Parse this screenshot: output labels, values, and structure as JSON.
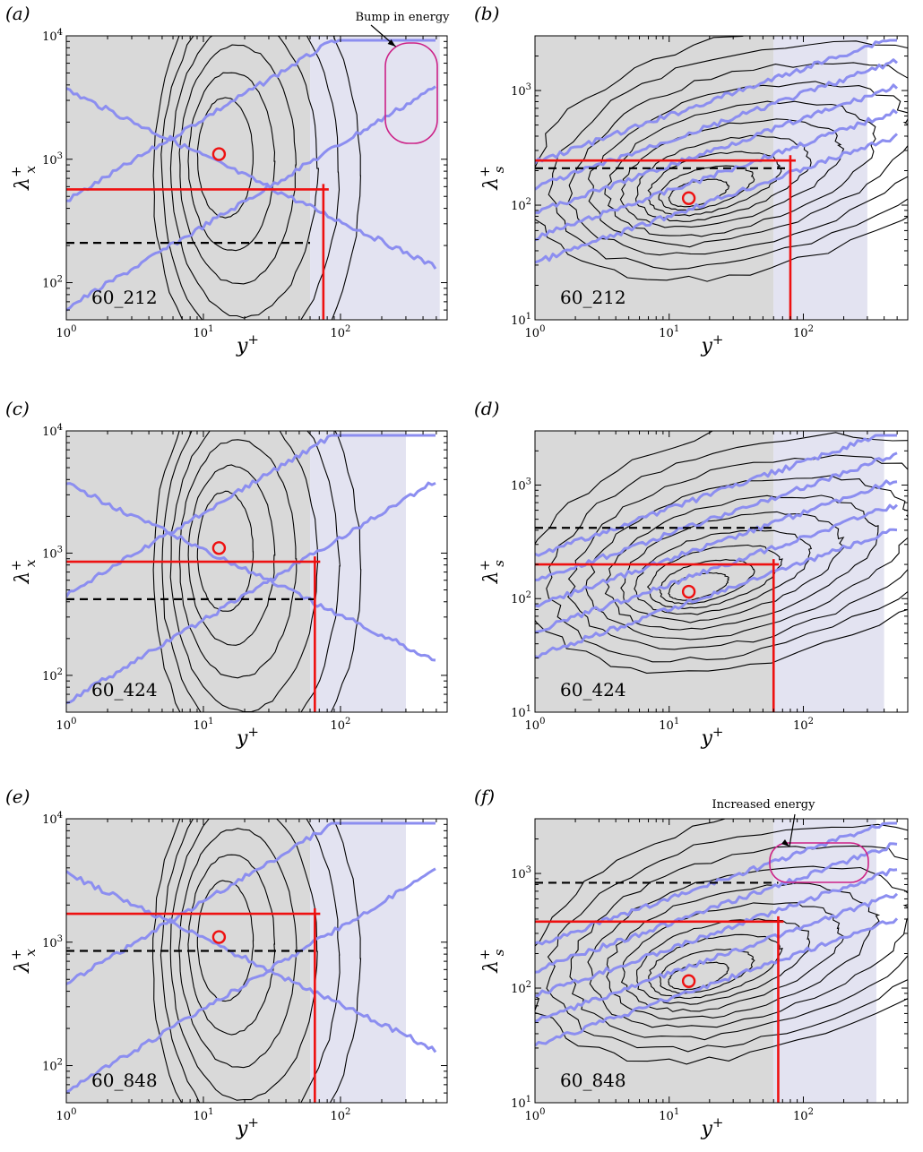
{
  "chart_data": [
    {
      "type": "contour",
      "panel_label": "(a)",
      "case_label": "60_212",
      "xlabel": "y+",
      "ylabel": "λx+",
      "xscale": "log",
      "yscale": "log",
      "xlim": [
        1,
        600
      ],
      "ylim": [
        50,
        10000
      ],
      "x_ticks": [
        "10^0",
        "10^1",
        "10^2"
      ],
      "y_ticks": [
        "10^2",
        "10^3",
        "10^4"
      ],
      "gray_region": [
        1,
        60
      ],
      "blue_region": [
        60,
        530
      ],
      "peak": {
        "x": 13,
        "y": 1100
      },
      "red_lines": {
        "y": 570,
        "x": 75
      },
      "dashed_line": {
        "y": 210,
        "x_end": 60
      },
      "annotation": "Bump in energy"
    },
    {
      "type": "contour",
      "panel_label": "(b)",
      "case_label": "60_212",
      "xlabel": "y+",
      "ylabel": "λs+",
      "xscale": "log",
      "yscale": "log",
      "xlim": [
        1,
        600
      ],
      "ylim": [
        10,
        3000
      ],
      "x_ticks": [
        "10^0",
        "10^1",
        "10^2"
      ],
      "y_ticks": [
        "10^1",
        "10^2",
        "10^3"
      ],
      "gray_region": [
        1,
        60
      ],
      "blue_region": [
        60,
        300
      ],
      "peak": {
        "x": 14,
        "y": 115
      },
      "red_lines": {
        "y": 245,
        "x": 80
      },
      "dashed_line": {
        "y": 210,
        "x_end": 80
      },
      "annotation": ""
    },
    {
      "type": "contour",
      "panel_label": "(c)",
      "case_label": "60_424",
      "xlabel": "y+",
      "ylabel": "λx+",
      "xscale": "log",
      "yscale": "log",
      "xlim": [
        1,
        600
      ],
      "ylim": [
        50,
        10000
      ],
      "x_ticks": [
        "10^0",
        "10^1",
        "10^2"
      ],
      "y_ticks": [
        "10^2",
        "10^3",
        "10^4"
      ],
      "gray_region": [
        1,
        60
      ],
      "blue_region": [
        60,
        300
      ],
      "peak": {
        "x": 13,
        "y": 1100
      },
      "red_lines": {
        "y": 850,
        "x": 65
      },
      "dashed_line": {
        "y": 420,
        "x_end": 65
      },
      "annotation": ""
    },
    {
      "type": "contour",
      "panel_label": "(d)",
      "case_label": "60_424",
      "xlabel": "y+",
      "ylabel": "λs+",
      "xscale": "log",
      "yscale": "log",
      "xlim": [
        1,
        600
      ],
      "ylim": [
        10,
        3000
      ],
      "x_ticks": [
        "10^0",
        "10^1",
        "10^2"
      ],
      "y_ticks": [
        "10^1",
        "10^2",
        "10^3"
      ],
      "gray_region": [
        1,
        60
      ],
      "blue_region": [
        60,
        400
      ],
      "peak": {
        "x": 14,
        "y": 115
      },
      "red_lines": {
        "y": 200,
        "x": 60
      },
      "dashed_line": {
        "y": 420,
        "x_end": 60
      },
      "annotation": ""
    },
    {
      "type": "contour",
      "panel_label": "(e)",
      "case_label": "60_848",
      "xlabel": "y+",
      "ylabel": "λx+",
      "xscale": "log",
      "yscale": "log",
      "xlim": [
        1,
        600
      ],
      "ylim": [
        50,
        10000
      ],
      "x_ticks": [
        "10^0",
        "10^1",
        "10^2"
      ],
      "y_ticks": [
        "10^2",
        "10^3",
        "10^4"
      ],
      "gray_region": [
        1,
        60
      ],
      "blue_region": [
        60,
        300
      ],
      "peak": {
        "x": 13,
        "y": 1100
      },
      "red_lines": {
        "y": 1700,
        "x": 65
      },
      "dashed_line": {
        "y": 850,
        "x_end": 65
      },
      "annotation": ""
    },
    {
      "type": "contour",
      "panel_label": "(f)",
      "case_label": "60_848",
      "xlabel": "y+",
      "ylabel": "λs+",
      "xscale": "log",
      "yscale": "log",
      "xlim": [
        1,
        600
      ],
      "ylim": [
        10,
        3000
      ],
      "x_ticks": [
        "10^0",
        "10^1",
        "10^2"
      ],
      "y_ticks": [
        "10^1",
        "10^2",
        "10^3"
      ],
      "gray_region": [
        1,
        60
      ],
      "blue_region": [
        60,
        350
      ],
      "peak": {
        "x": 14,
        "y": 115
      },
      "red_lines": {
        "y": 380,
        "x": 65
      },
      "dashed_line": {
        "y": 830,
        "x_end": 65
      },
      "annotation": "Increased energy"
    }
  ],
  "colors": {
    "gray_bg": "#d9d9d9",
    "blue_bg": "#e3e3f1",
    "contour": "#000000",
    "blue_line": "#8c8ef0",
    "red": "#ee1111",
    "annotation_box": "#cc2288"
  }
}
